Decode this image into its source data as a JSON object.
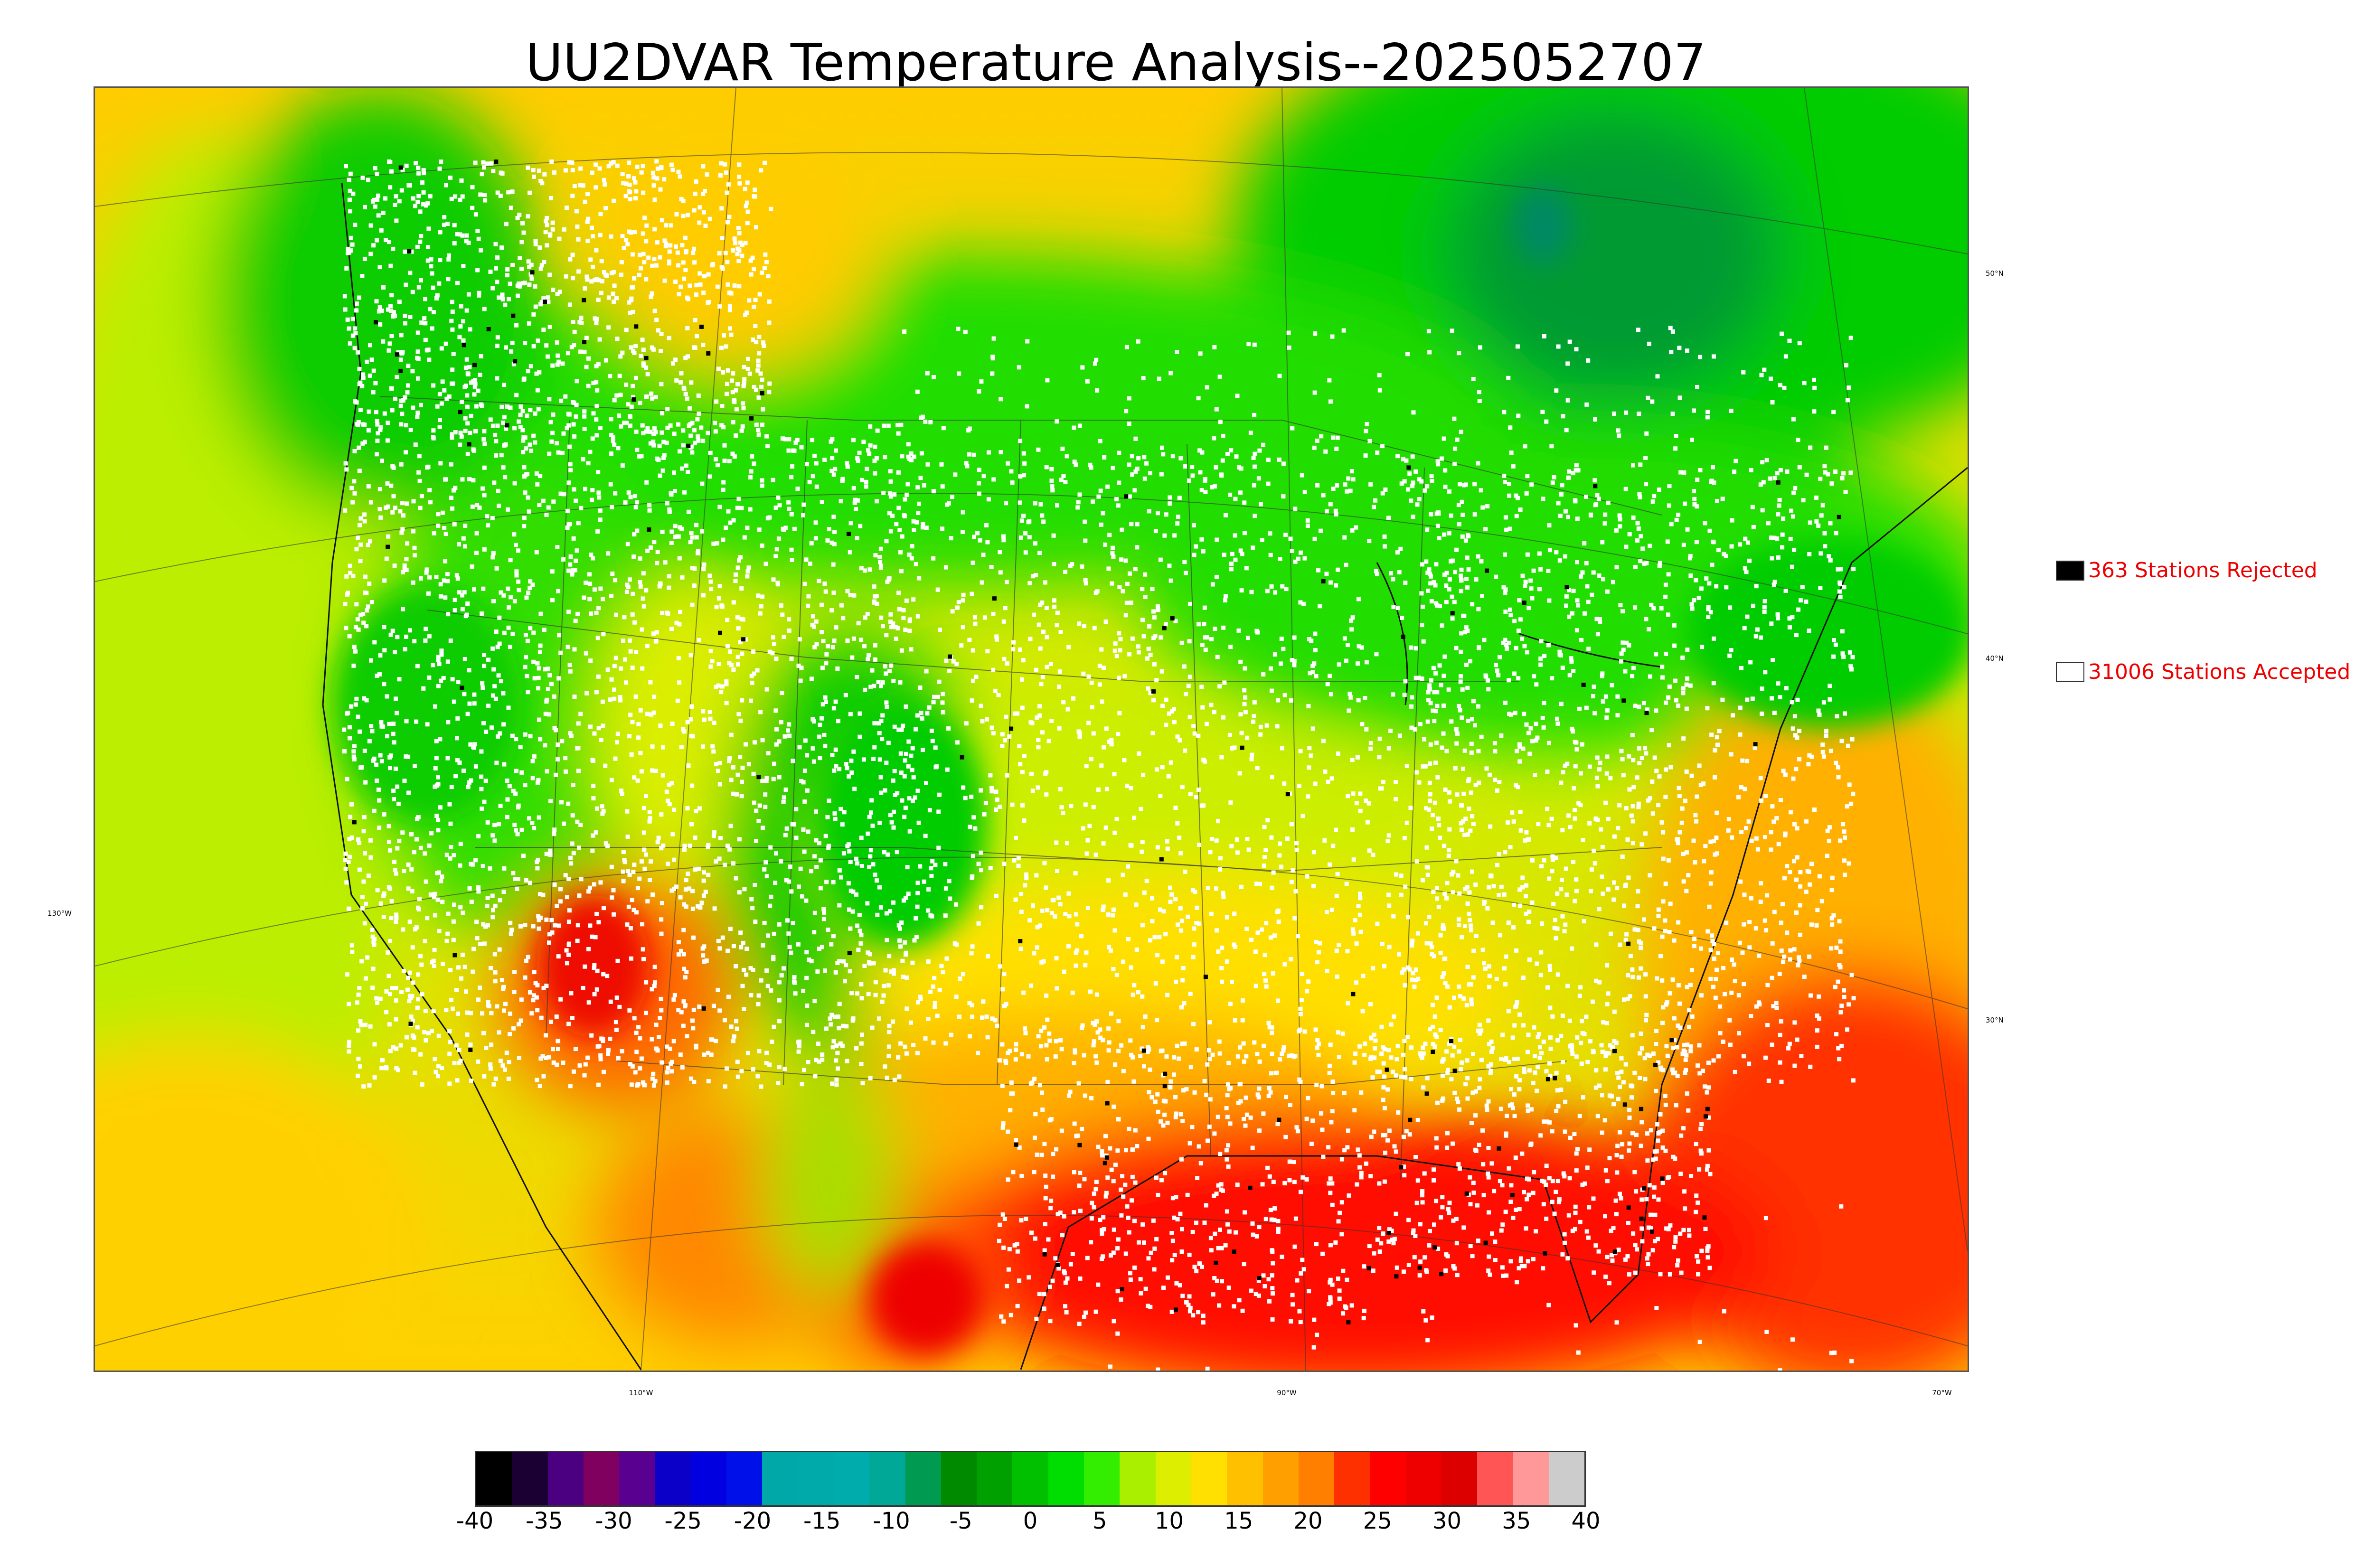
{
  "title": "UU2DVAR Temperature Analysis--2025052707",
  "latitude_labels": [
    "50°N",
    "40°N",
    "30°N"
  ],
  "longitude_labels": [
    "130°W",
    "110°W",
    "90°W",
    "70°W"
  ],
  "legend": {
    "rejected": {
      "label": "363 Stations Rejected",
      "color": "#000000"
    },
    "accepted": {
      "label": "31006 Stations Accepted",
      "color": "#ffffff"
    }
  },
  "colorbar": {
    "min": -40,
    "max": 40,
    "ticks": [
      -40,
      -35,
      -30,
      -25,
      -20,
      -15,
      -10,
      -5,
      0,
      5,
      10,
      15,
      20,
      25,
      30,
      35,
      40
    ],
    "colors": [
      "#000000",
      "#1a0033",
      "#4a0080",
      "#800060",
      "#5a0090",
      "#0a00c8",
      "#0000e0",
      "#0010e8",
      "#00a8a8",
      "#00aaaa",
      "#00acac",
      "#00a898",
      "#009a50",
      "#008a00",
      "#00a000",
      "#00c000",
      "#00dd00",
      "#33ee00",
      "#aaee00",
      "#ddee00",
      "#ffe000",
      "#ffc000",
      "#ffa000",
      "#ff8000",
      "#ff3000",
      "#ff0000",
      "#ee0000",
      "#dd0000",
      "#ff5555",
      "#ff9999",
      "#cccccc"
    ]
  },
  "stations": {
    "accepted_count": 31006,
    "rejected_count": 363
  }
}
